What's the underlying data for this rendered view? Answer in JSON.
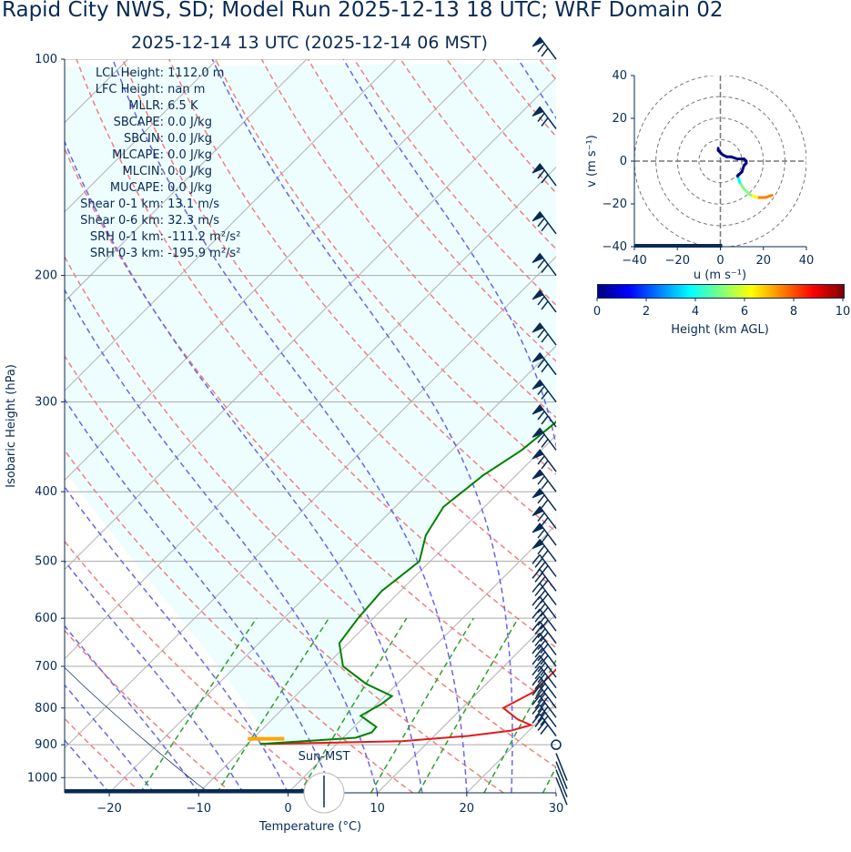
{
  "title": "Rapid City NWS, SD; Model Run 2025-12-13 18 UTC; WRF Domain 02",
  "subtitle": "2025-12-14 13 UTC  (2025-12-14 06 MST)",
  "params": [
    {
      "label": "LCL Height:",
      "value": "1112.0 m"
    },
    {
      "label": "LFC Height:",
      "value": "nan m"
    },
    {
      "label": "MLLR:",
      "value": "6.5 K"
    },
    {
      "label": "SBCAPE:",
      "value": "0.0 J/kg"
    },
    {
      "label": "SBCIN:",
      "value": "0.0 J/kg"
    },
    {
      "label": "MLCAPE:",
      "value": "0.0 J/kg"
    },
    {
      "label": "MLCIN:",
      "value": "0.0 J/kg"
    },
    {
      "label": "MUCAPE:",
      "value": "0.0 J/kg"
    },
    {
      "label": "Shear 0-1 km:",
      "value": "13.1 m/s"
    },
    {
      "label": "Shear 0-6 km:",
      "value": "32.3 m/s"
    },
    {
      "label": "SRH 0-1 km:",
      "value": "-111.2 m²/s²"
    },
    {
      "label": "SRH 0-3 km:",
      "value": "-195.9 m²/s²"
    }
  ],
  "sun_label": "Sun-MST",
  "colors": {
    "text": "#082a54",
    "temperature": "#e31a1c",
    "dewpoint": "#008000",
    "parcel_fill": "#eefefe",
    "dry_adiabat": "#f08080",
    "moist_adiabat": "#6666ee",
    "mixing_ratio": "#2ca02c",
    "lcl_marker": "#ffa500"
  },
  "chart_data": {
    "type": "skew-t",
    "xlabel": "Temperature (°C)",
    "ylabel": "Isobaric Height (hPa)",
    "xlim": [
      -25,
      30
    ],
    "ylim": [
      1050,
      100
    ],
    "xticks": [
      -20,
      -10,
      0,
      10,
      20,
      30
    ],
    "xtick_labels": [
      "−20",
      "−10",
      "0",
      "10",
      "20",
      "30"
    ],
    "yticks": [
      100,
      200,
      300,
      400,
      500,
      600,
      700,
      800,
      900,
      1000
    ],
    "temperature_profile": [
      [
        898,
        -8.5
      ],
      [
        890,
        7
      ],
      [
        875,
        13.8
      ],
      [
        860,
        18
      ],
      [
        845,
        19.6
      ],
      [
        830,
        17.5
      ],
      [
        800,
        14.6
      ],
      [
        760,
        16.2
      ],
      [
        700,
        16.2
      ],
      [
        650,
        15
      ],
      [
        600,
        13.4
      ],
      [
        550,
        11.5
      ],
      [
        500,
        8.9
      ],
      [
        450,
        5.9
      ],
      [
        400,
        2.5
      ],
      [
        350,
        -1.7
      ],
      [
        320,
        -4.3
      ],
      [
        300,
        -5.6
      ],
      [
        270,
        -6.2
      ],
      [
        220,
        -4.7
      ],
      [
        190,
        -3.4
      ],
      [
        160,
        0.5
      ],
      [
        130,
        5.2
      ],
      [
        115,
        7.4
      ],
      [
        100,
        9.3
      ]
    ],
    "dewpoint_profile": [
      [
        898,
        -8.6
      ],
      [
        880,
        1.4
      ],
      [
        865,
        2.6
      ],
      [
        850,
        2.5
      ],
      [
        820,
        -0.5
      ],
      [
        790,
        0.5
      ],
      [
        770,
        0.8
      ],
      [
        740,
        -3.5
      ],
      [
        700,
        -8
      ],
      [
        650,
        -11
      ],
      [
        600,
        -11.7
      ],
      [
        550,
        -12.1
      ],
      [
        500,
        -11.2
      ],
      [
        460,
        -13.4
      ],
      [
        420,
        -14.6
      ],
      [
        380,
        -13.7
      ],
      [
        350,
        -12.2
      ],
      [
        320,
        -11.5
      ],
      [
        300,
        -12.2
      ],
      [
        270,
        -14.1
      ],
      [
        245,
        -15.9
      ],
      [
        220,
        -17.3
      ],
      [
        200,
        -15.8
      ],
      [
        180,
        -12.4
      ],
      [
        160,
        -11.2
      ],
      [
        130,
        -8.2
      ],
      [
        115,
        -3.1
      ],
      [
        100,
        1.2
      ]
    ],
    "lcl": {
      "pressure": 883,
      "temperature": -8.3
    },
    "wind_barbs_pressure_levels": [
      1000,
      975,
      950,
      925,
      900,
      875,
      850,
      825,
      800,
      775,
      750,
      725,
      700,
      675,
      650,
      625,
      600,
      575,
      550,
      525,
      500,
      475,
      450,
      425,
      400,
      375,
      350,
      325,
      300,
      275,
      250,
      225,
      200,
      175,
      150,
      125,
      100
    ],
    "hodograph": {
      "xlabel": "u (m s⁻¹)",
      "ylabel": "v (m s⁻¹)",
      "xlim": [
        -40,
        40
      ],
      "ylim": [
        -40,
        40
      ],
      "ticks": [
        -40,
        -20,
        0,
        20,
        40
      ],
      "tick_labels": [
        "−40",
        "−20",
        "0",
        "20",
        "40"
      ],
      "u": [
        24,
        21,
        17,
        14,
        11,
        9,
        8,
        9,
        10,
        11,
        12,
        12,
        11,
        8,
        5,
        3,
        1,
        0,
        -1,
        -1
      ],
      "v": [
        -16,
        -17,
        -17,
        -16,
        -13,
        -10,
        -7,
        -6,
        -5,
        -2,
        -1,
        0,
        1,
        1,
        2,
        2,
        3,
        4,
        5,
        6
      ],
      "height_km": [
        0,
        0.3,
        0.6,
        0.9,
        1.2,
        1.5,
        1.8,
        2.1,
        2.4,
        2.8,
        3.2,
        3.6,
        4,
        4.5,
        5,
        5.5,
        6,
        6.5,
        7,
        8
      ]
    },
    "colorbar": {
      "label": "Height (km AGL)",
      "ticks": [
        0,
        2,
        4,
        6,
        8,
        10
      ],
      "range": [
        0,
        10
      ]
    }
  }
}
